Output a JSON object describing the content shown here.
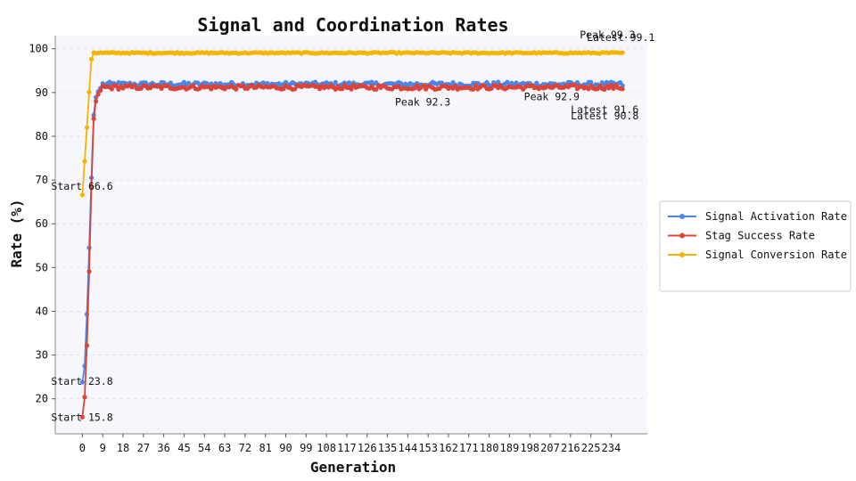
{
  "chart_data": {
    "type": "line",
    "title": "Signal and Coordination Rates",
    "xlabel": "Generation",
    "ylabel": "Rate (%)",
    "xlim": [
      -12,
      250
    ],
    "ylim": [
      12,
      103
    ],
    "x_ticks": [
      0,
      9,
      18,
      27,
      36,
      45,
      54,
      63,
      72,
      81,
      90,
      99,
      108,
      117,
      126,
      135,
      144,
      153,
      162,
      171,
      180,
      189,
      198,
      207,
      216,
      225,
      234
    ],
    "y_ticks": [
      20,
      30,
      40,
      50,
      60,
      70,
      80,
      90,
      100
    ],
    "grid": "horizontal dashed",
    "legend_position": "right, outside",
    "background": "#f6f7fc",
    "generations": 240,
    "series": [
      {
        "name": "Signal Activation Rate",
        "color": "#4a86e8",
        "start_values": [
          23.8,
          27.5,
          39.3,
          54.5,
          70.5,
          84.8,
          88.9,
          90.2,
          91.0
        ],
        "plateau_mean": 91.9,
        "plateau_noise": 0.5,
        "latest": 91.6,
        "peak": 92.9
      },
      {
        "name": "Stag Success Rate",
        "color": "#db4437",
        "start_values": [
          15.8,
          20.4,
          32.2,
          49.1,
          68.5,
          84.0,
          88.0,
          89.6,
          90.5
        ],
        "plateau_mean": 91.2,
        "plateau_noise": 0.5,
        "latest": 90.8,
        "peak": 92.3
      },
      {
        "name": "Signal Conversion Rate",
        "color": "#f4b400",
        "start_values": [
          66.6,
          74.3,
          82.0,
          90.1,
          97.6,
          99.1
        ],
        "plateau_mean": 99.05,
        "plateau_noise": 0.15,
        "latest": 99.1,
        "peak": 99.3
      }
    ],
    "annotations": [
      {
        "text": "Start 66.6",
        "x": 0,
        "y": 66.6
      },
      {
        "text": "Start 23.8",
        "x": 0,
        "y": 23.8
      },
      {
        "text": "Start 15.8",
        "x": 0,
        "y": 15.8
      },
      {
        "text": "Peak 99.3",
        "x": 228,
        "y": 99.3
      },
      {
        "text": "Latest 99.1",
        "x": 239,
        "y": 99.1
      },
      {
        "text": "Peak 92.3",
        "x": 162,
        "y": 92.3
      },
      {
        "text": "Peak 92.9",
        "x": 225,
        "y": 92.9
      },
      {
        "text": "Latest 91.6",
        "x": 239,
        "y": 91.6
      },
      {
        "text": "Latest 90.8",
        "x": 239,
        "y": 90.8
      }
    ]
  }
}
